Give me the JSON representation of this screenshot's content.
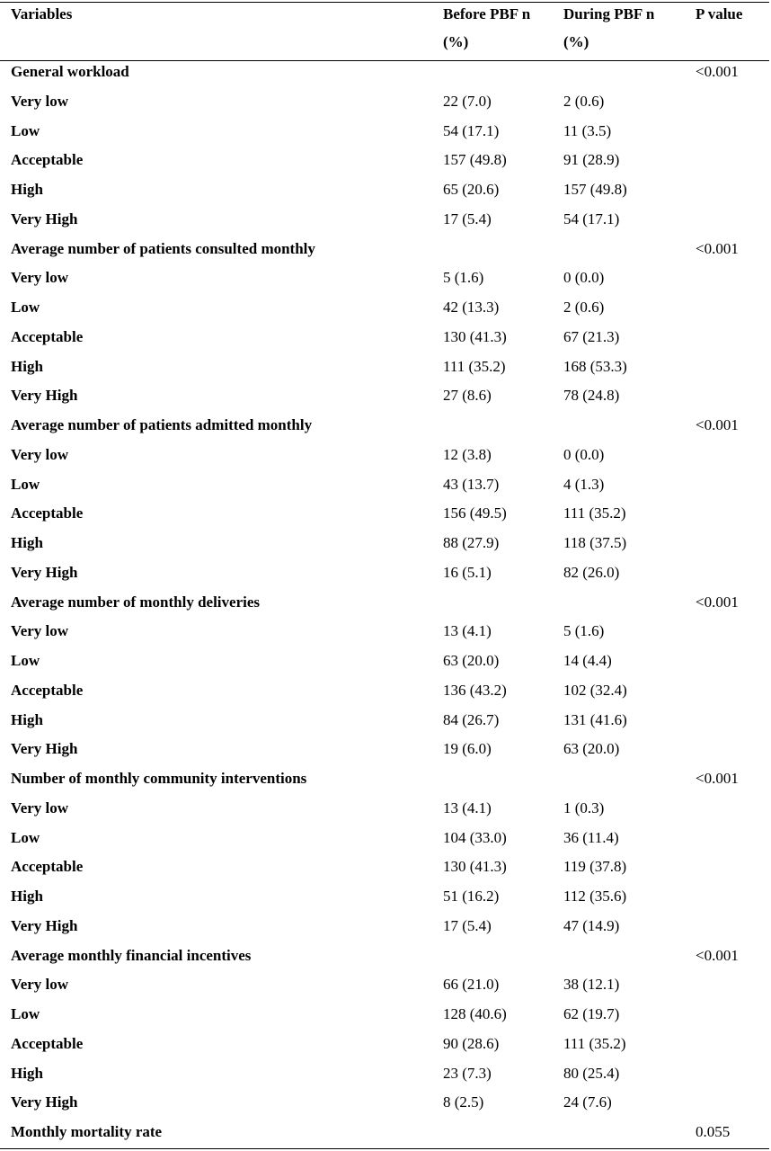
{
  "table": {
    "headers": {
      "variables": "Variables",
      "before_line1": "Before PBF n",
      "before_line2": "(%)",
      "during_line1": "During PBF n",
      "during_line2": "(%)",
      "p_value": "P value"
    },
    "rows": [
      {
        "type": "section",
        "label": "General workload",
        "before": "",
        "during": "",
        "p": "<0.001"
      },
      {
        "type": "item",
        "label": "Very low",
        "before": "22 (7.0)",
        "during": "2 (0.6)",
        "p": ""
      },
      {
        "type": "item",
        "label": "Low",
        "before": "54 (17.1)",
        "during": "11 (3.5)",
        "p": ""
      },
      {
        "type": "item",
        "label": "Acceptable",
        "before": "157 (49.8)",
        "during": "91 (28.9)",
        "p": ""
      },
      {
        "type": "item",
        "label": "High",
        "before": "65 (20.6)",
        "during": "157 (49.8)",
        "p": ""
      },
      {
        "type": "item",
        "label": "Very High",
        "before": "17 (5.4)",
        "during": "54 (17.1)",
        "p": ""
      },
      {
        "type": "section",
        "label": "Average number of patients consulted monthly",
        "before": "",
        "during": "",
        "p": "<0.001"
      },
      {
        "type": "item",
        "label": "Very low",
        "before": "5 (1.6)",
        "during": "0 (0.0)",
        "p": ""
      },
      {
        "type": "item",
        "label": "Low",
        "before": "42 (13.3)",
        "during": "2 (0.6)",
        "p": ""
      },
      {
        "type": "item",
        "label": "Acceptable",
        "before": "130 (41.3)",
        "during": "67 (21.3)",
        "p": ""
      },
      {
        "type": "item",
        "label": "High",
        "before": "111 (35.2)",
        "during": "168 (53.3)",
        "p": ""
      },
      {
        "type": "item",
        "label": "Very High",
        "before": "27 (8.6)",
        "during": "78 (24.8)",
        "p": ""
      },
      {
        "type": "section",
        "label": "Average number of patients admitted monthly",
        "before": "",
        "during": "",
        "p": "<0.001"
      },
      {
        "type": "item",
        "label": "Very low",
        "before": "12 (3.8)",
        "during": "0 (0.0)",
        "p": ""
      },
      {
        "type": "item",
        "label": "Low",
        "before": "43 (13.7)",
        "during": "4 (1.3)",
        "p": ""
      },
      {
        "type": "item",
        "label": "Acceptable",
        "before": "156 (49.5)",
        "during": "111 (35.2)",
        "p": ""
      },
      {
        "type": "item",
        "label": "High",
        "before": "88 (27.9)",
        "during": "118 (37.5)",
        "p": ""
      },
      {
        "type": "item",
        "label": "Very High",
        "before": "16 (5.1)",
        "during": "82 (26.0)",
        "p": ""
      },
      {
        "type": "section",
        "label": "Average number of monthly deliveries",
        "before": "",
        "during": "",
        "p": "<0.001"
      },
      {
        "type": "item",
        "label": "Very low",
        "before": "13 (4.1)",
        "during": "5 (1.6)",
        "p": ""
      },
      {
        "type": "item",
        "label": "Low",
        "before": "63 (20.0)",
        "during": "14 (4.4)",
        "p": ""
      },
      {
        "type": "item",
        "label": "Acceptable",
        "before": "136 (43.2)",
        "during": "102 (32.4)",
        "p": ""
      },
      {
        "type": "item",
        "label": "High",
        "before": "84 (26.7)",
        "during": "131 (41.6)",
        "p": ""
      },
      {
        "type": "item",
        "label": "Very High",
        "before": "19 (6.0)",
        "during": "63 (20.0)",
        "p": ""
      },
      {
        "type": "section",
        "label": "Number of monthly community interventions",
        "before": "",
        "during": "",
        "p": "<0.001"
      },
      {
        "type": "item",
        "label": "Very low",
        "before": "13 (4.1)",
        "during": "1 (0.3)",
        "p": ""
      },
      {
        "type": "item",
        "label": "Low",
        "before": "104 (33.0)",
        "during": "36 (11.4)",
        "p": ""
      },
      {
        "type": "item",
        "label": "Acceptable",
        "before": "130 (41.3)",
        "during": "119 (37.8)",
        "p": ""
      },
      {
        "type": "item",
        "label": "High",
        "before": "51 (16.2)",
        "during": "112 (35.6)",
        "p": ""
      },
      {
        "type": "item",
        "label": "Very High",
        "before": "17 (5.4)",
        "during": "47 (14.9)",
        "p": ""
      },
      {
        "type": "section",
        "label": "Average monthly financial incentives",
        "before": "",
        "during": "",
        "p": "<0.001"
      },
      {
        "type": "item",
        "label": "Very low",
        "before": "66 (21.0)",
        "during": "38 (12.1)",
        "p": ""
      },
      {
        "type": "item",
        "label": "Low",
        "before": "128 (40.6)",
        "during": "62 (19.7)",
        "p": ""
      },
      {
        "type": "item",
        "label": "Acceptable",
        "before": "90 (28.6)",
        "during": "111 (35.2)",
        "p": ""
      },
      {
        "type": "item",
        "label": "High",
        "before": "23 (7.3)",
        "during": "80 (25.4)",
        "p": ""
      },
      {
        "type": "item",
        "label": "Very High",
        "before": "8 (2.5)",
        "during": "24 (7.6)",
        "p": ""
      },
      {
        "type": "section",
        "label": "Monthly mortality rate",
        "before": "",
        "during": "",
        "p": "0.055"
      }
    ]
  }
}
